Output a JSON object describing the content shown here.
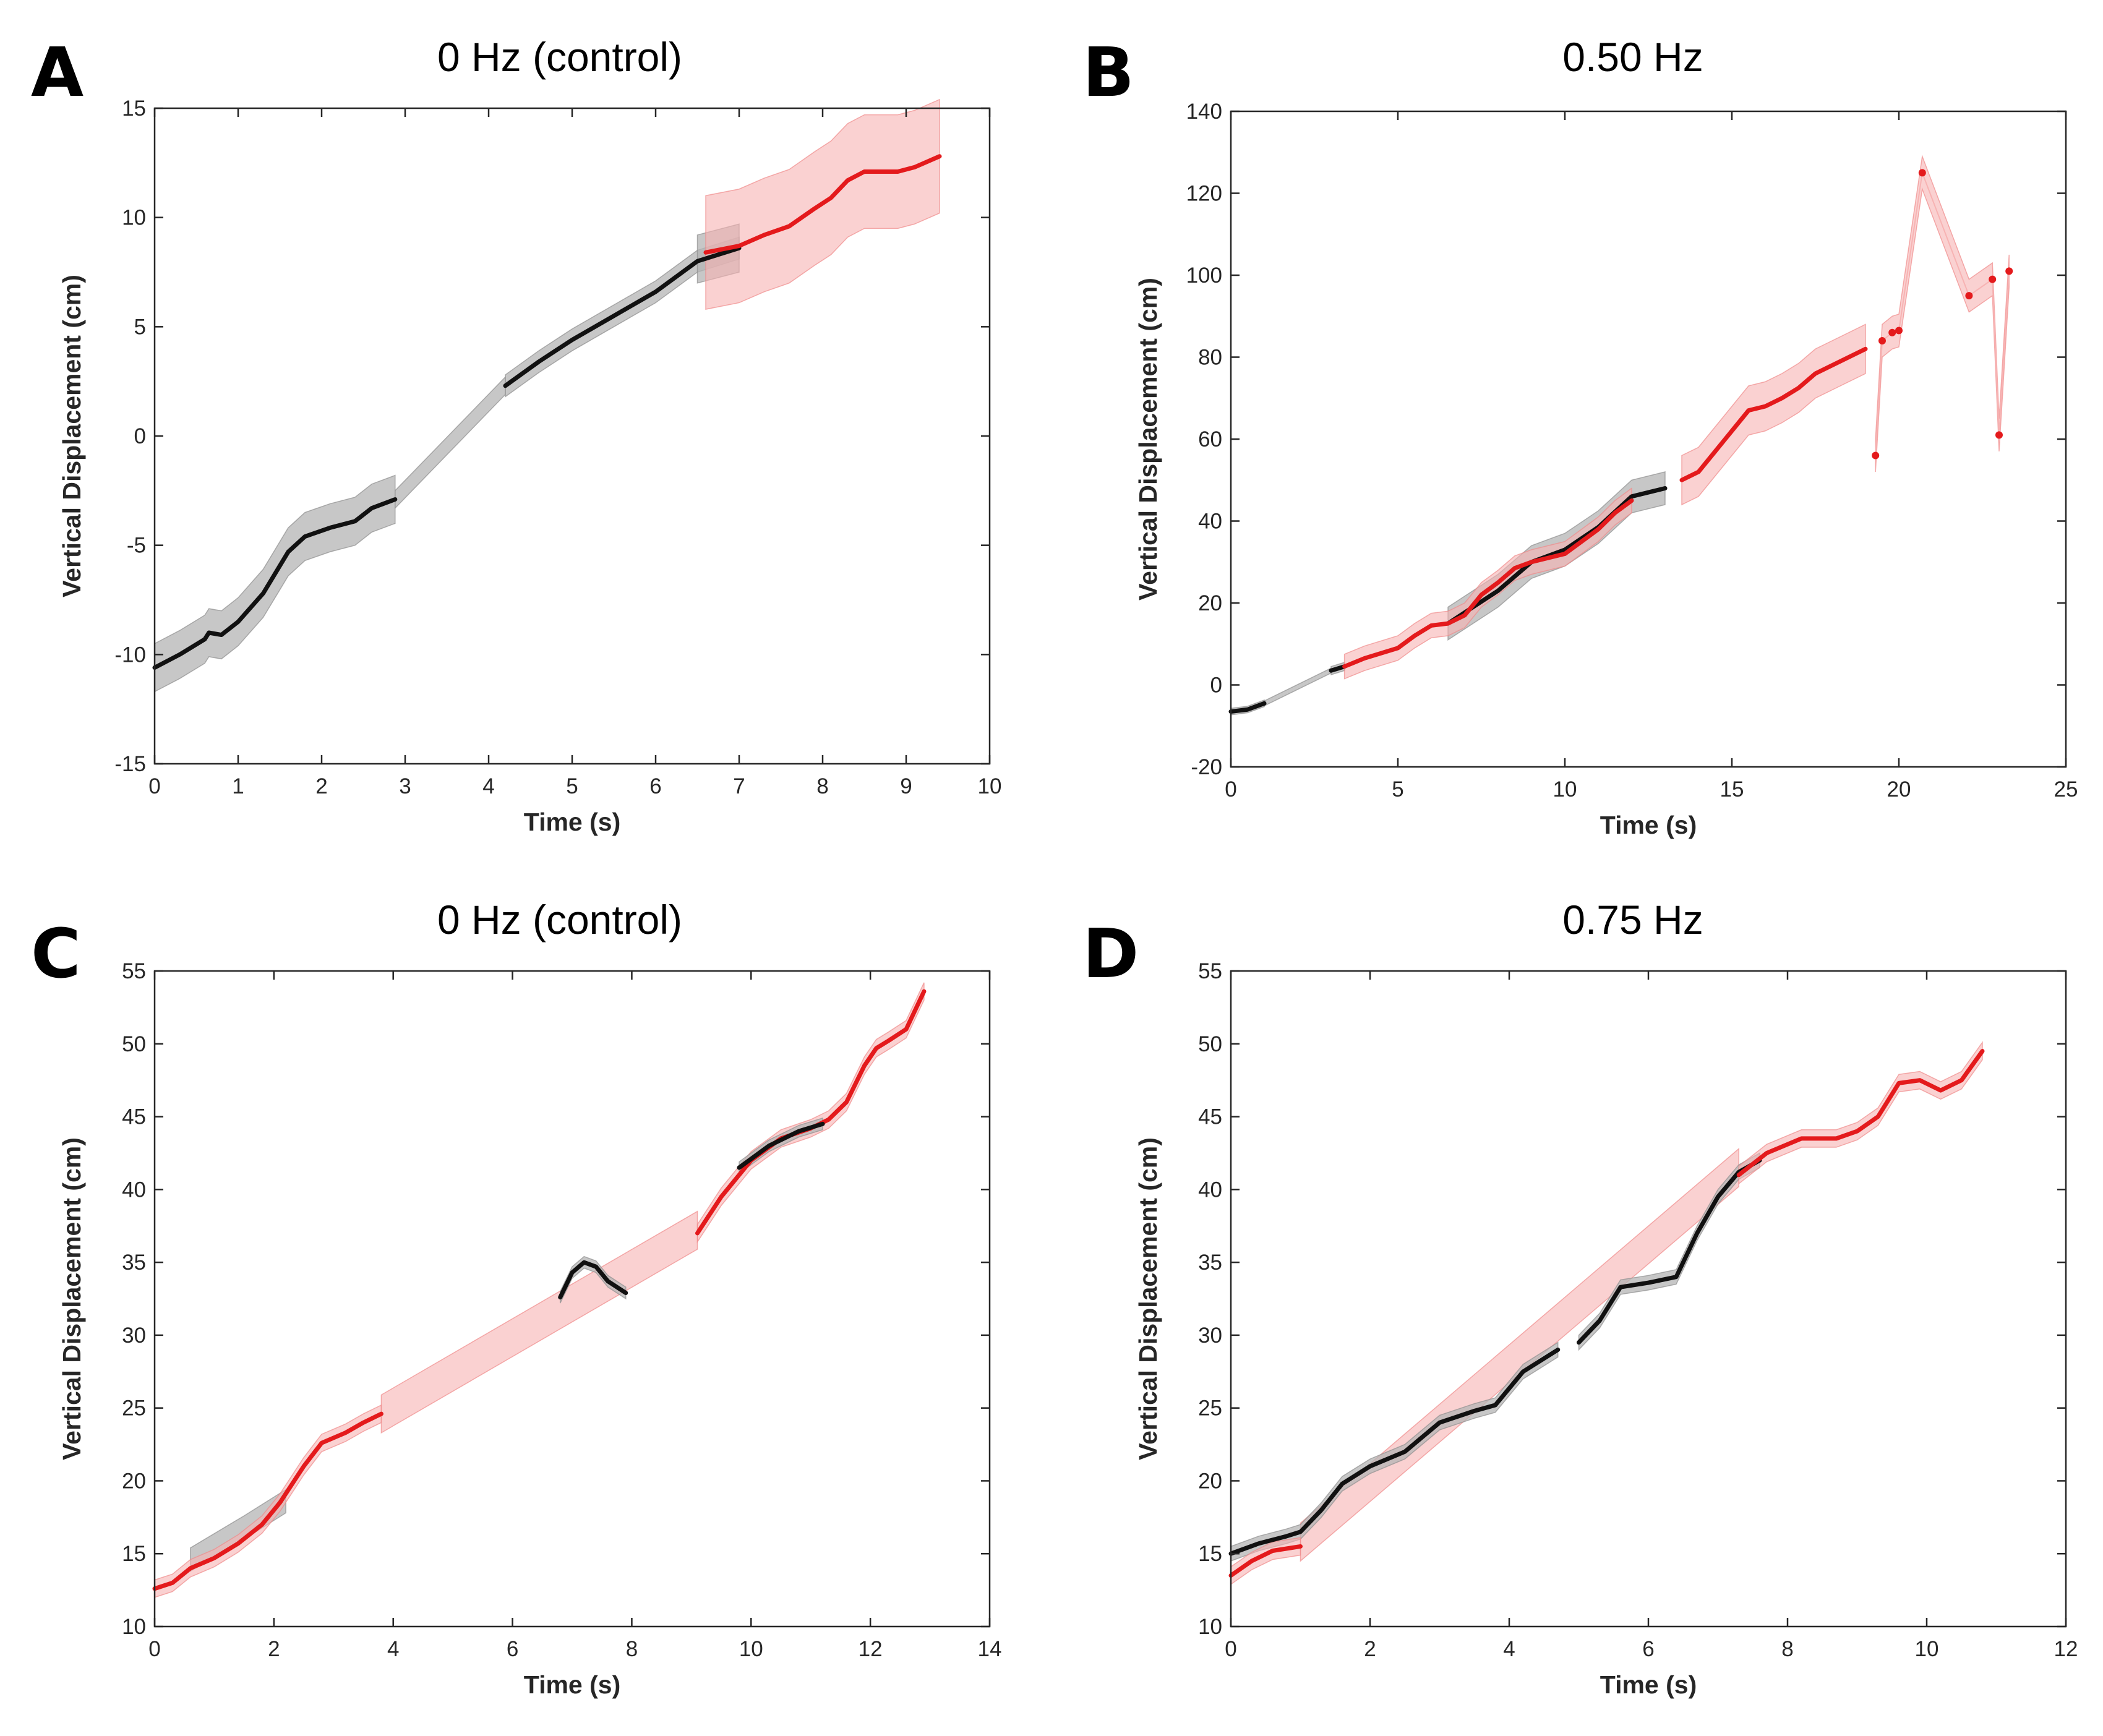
{
  "chart_data": [
    {
      "panel": "A",
      "type": "line",
      "title": "0 Hz (control)",
      "xlabel": "Time (s)",
      "ylabel": "Vertical Displacement (cm)",
      "xlim": [
        0,
        10
      ],
      "ylim": [
        -15,
        15
      ],
      "xticks": [
        "0",
        "1",
        "2",
        "3",
        "4",
        "5",
        "6",
        "7",
        "8",
        "9",
        "10"
      ],
      "yticks": [
        "-15",
        "-10",
        "-5",
        "0",
        "5",
        "10",
        "15"
      ],
      "colors": {
        "black": "#111111",
        "red": "#e41a1c",
        "black_band": "#b4b4b4",
        "red_band": "#f7b3b3"
      },
      "series": [
        {
          "name": "black_1",
          "color": "black",
          "band": 1.1,
          "x": [
            0,
            0.3,
            0.6,
            0.65,
            0.8,
            1.0,
            1.3,
            1.6,
            1.8,
            2.1,
            2.4,
            2.6,
            2.88
          ],
          "y": [
            -10.6,
            -10.0,
            -9.3,
            -9.0,
            -9.1,
            -8.5,
            -7.2,
            -5.3,
            -4.6,
            -4.2,
            -3.9,
            -3.3,
            -2.9
          ]
        },
        {
          "name": "gap_1",
          "color": "black",
          "band": 0.4,
          "band_only": true,
          "x": [
            2.88,
            4.2
          ],
          "y": [
            -2.9,
            2.3
          ]
        },
        {
          "name": "black_2",
          "color": "black",
          "band": 0.5,
          "x": [
            4.2,
            4.6,
            5.0,
            5.5,
            6.0,
            6.5,
            7.0
          ],
          "y": [
            2.3,
            3.4,
            4.4,
            5.5,
            6.6,
            8.0,
            8.6
          ]
        },
        {
          "name": "black_band_end",
          "color": "black",
          "band": 1.1,
          "band_only": true,
          "x": [
            6.5,
            7.0
          ],
          "y": [
            8.1,
            8.6
          ]
        },
        {
          "name": "red_1",
          "color": "red",
          "band_lower": 2.6,
          "band_upper": 2.6,
          "x": [
            6.6,
            7.0,
            7.3,
            7.6,
            7.9,
            8.1,
            8.3,
            8.5,
            8.9,
            9.1,
            9.4
          ],
          "y": [
            8.4,
            8.7,
            9.2,
            9.6,
            10.4,
            10.9,
            11.7,
            12.1,
            12.1,
            12.3,
            12.8
          ]
        }
      ]
    },
    {
      "panel": "B",
      "type": "line",
      "title": "0.50 Hz",
      "xlabel": "Time (s)",
      "ylabel": "Vertical Displacement (cm)",
      "xlim": [
        0,
        25
      ],
      "ylim": [
        -20,
        140
      ],
      "xticks": [
        "0",
        "5",
        "10",
        "15",
        "20",
        "25"
      ],
      "yticks": [
        "-20",
        "0",
        "20",
        "40",
        "60",
        "80",
        "100",
        "120",
        "140"
      ],
      "colors": {
        "black": "#111111",
        "red": "#e41a1c",
        "black_band": "#b4b4b4",
        "red_band": "#f7b3b3"
      },
      "series": [
        {
          "name": "black_1",
          "color": "black",
          "band": 0.8,
          "x": [
            0,
            0.5,
            1.0
          ],
          "y": [
            -6.5,
            -6.0,
            -4.5
          ]
        },
        {
          "name": "gap_1",
          "color": "black",
          "band": 0.6,
          "band_only": true,
          "x": [
            1.0,
            3.0
          ],
          "y": [
            -4.5,
            3.5
          ]
        },
        {
          "name": "black_2",
          "color": "black",
          "band": 1.0,
          "x": [
            3.0,
            3.4
          ],
          "y": [
            3.5,
            4.5
          ]
        },
        {
          "name": "black_3",
          "color": "black",
          "band": 4.0,
          "x": [
            6.5,
            8.0,
            9.0,
            10.0,
            11.0,
            12.0,
            13.0
          ],
          "y": [
            15.0,
            23.0,
            30.0,
            33.0,
            38.5,
            46.0,
            48.0
          ]
        },
        {
          "name": "red_1",
          "color": "red",
          "band": 3.0,
          "x": [
            3.4,
            4.0,
            5.0,
            5.5,
            6.0,
            6.5,
            7.0,
            7.5,
            8.0,
            8.5,
            9.0,
            9.5,
            10.0,
            10.5,
            11.0,
            11.5,
            12.0
          ],
          "y": [
            4.5,
            6.5,
            9.0,
            12.0,
            14.5,
            15.0,
            17.0,
            22.0,
            25.0,
            28.5,
            30.0,
            31.0,
            32.0,
            35.0,
            38.0,
            42.0,
            45.0
          ]
        },
        {
          "name": "red_2",
          "color": "red",
          "band": 6.0,
          "x": [
            13.5,
            14.0,
            14.5,
            15.0,
            15.5,
            16.0,
            16.5,
            17.0,
            17.5,
            18.0,
            18.5,
            19.0
          ],
          "y": [
            50.0,
            52.0,
            57.0,
            62.0,
            67.0,
            68.0,
            70.0,
            72.5,
            76.0,
            78.0,
            80.0,
            82.0
          ]
        },
        {
          "name": "red_3",
          "color": "red",
          "band_lower": 4.0,
          "band_upper": 4.0,
          "markers": true,
          "x": [
            19.3,
            19.5,
            19.8,
            20.0,
            20.7,
            22.1,
            22.8,
            23.0,
            23.3
          ],
          "y": [
            56.0,
            84.0,
            86.0,
            86.5,
            125.0,
            95.0,
            99.0,
            61.0,
            101.0
          ]
        }
      ]
    },
    {
      "panel": "C",
      "type": "line",
      "title": "0 Hz (control)",
      "xlabel": "Time (s)",
      "ylabel": "Vertical Displacement (cm)",
      "xlim": [
        0,
        14
      ],
      "ylim": [
        10,
        55
      ],
      "xticks": [
        "0",
        "2",
        "4",
        "6",
        "8",
        "10",
        "12",
        "14"
      ],
      "yticks": [
        "10",
        "15",
        "20",
        "25",
        "30",
        "35",
        "40",
        "45",
        "50",
        "55"
      ],
      "colors": {
        "black": "#111111",
        "red": "#e41a1c",
        "black_band": "#b4b4b4",
        "red_band": "#f7b3b3"
      },
      "series": [
        {
          "name": "black_band_early",
          "color": "black",
          "band": 0.8,
          "band_only": true,
          "x": [
            0.6,
            1.5,
            2.2
          ],
          "y": [
            14.6,
            16.8,
            18.6
          ]
        },
        {
          "name": "red_1",
          "color": "red",
          "band": 0.6,
          "x": [
            0,
            0.3,
            0.6,
            1.0,
            1.4,
            1.8,
            2.1,
            2.5,
            2.8,
            3.2,
            3.5,
            3.8
          ],
          "y": [
            12.6,
            13.0,
            14.0,
            14.7,
            15.7,
            17.0,
            18.5,
            21.0,
            22.6,
            23.3,
            24.0,
            24.6
          ]
        },
        {
          "name": "red_gap",
          "color": "red",
          "band": 1.3,
          "band_only": true,
          "x": [
            3.8,
            9.1
          ],
          "y": [
            24.6,
            37.2
          ]
        },
        {
          "name": "black_1",
          "color": "black",
          "band": 0.4,
          "x": [
            6.8,
            7.0,
            7.2,
            7.4,
            7.6,
            7.9
          ],
          "y": [
            32.6,
            34.3,
            35.0,
            34.7,
            33.7,
            32.9
          ]
        },
        {
          "name": "red_2",
          "color": "red",
          "band": 0.6,
          "x": [
            9.1,
            9.5,
            10.0,
            10.5,
            11.0,
            11.3,
            11.6,
            11.9,
            12.1,
            12.3,
            12.6,
            12.9
          ],
          "y": [
            37.0,
            39.5,
            42.0,
            43.5,
            44.2,
            44.8,
            46.0,
            48.5,
            49.7,
            50.2,
            51.0,
            53.6
          ]
        },
        {
          "name": "black_2",
          "color": "black",
          "band": 0.4,
          "x": [
            9.8,
            10.3,
            10.8,
            11.2
          ],
          "y": [
            41.5,
            43.0,
            44.0,
            44.5
          ]
        }
      ]
    },
    {
      "panel": "D",
      "type": "line",
      "title": "0.75 Hz",
      "xlabel": "Time (s)",
      "ylabel": "Vertical Displacement (cm)",
      "xlim": [
        0,
        12
      ],
      "ylim": [
        10,
        55
      ],
      "xticks": [
        "0",
        "2",
        "4",
        "6",
        "8",
        "10",
        "12"
      ],
      "yticks": [
        "10",
        "15",
        "20",
        "25",
        "30",
        "35",
        "40",
        "45",
        "50",
        "55"
      ],
      "colors": {
        "black": "#111111",
        "red": "#e41a1c",
        "black_band": "#b4b4b4",
        "red_band": "#f7b3b3"
      },
      "series": [
        {
          "name": "red_band_diag",
          "color": "red",
          "band": 1.3,
          "band_only": true,
          "x": [
            1.0,
            7.3
          ],
          "y": [
            15.8,
            41.5
          ]
        },
        {
          "name": "black_1",
          "color": "black",
          "band": 0.5,
          "x": [
            0,
            0.4,
            0.8,
            1.0,
            1.3,
            1.6,
            2.0,
            2.5,
            3.0,
            3.5,
            3.8,
            4.2,
            4.7
          ],
          "y": [
            15.0,
            15.7,
            16.2,
            16.5,
            18.0,
            19.8,
            21.0,
            22.0,
            24.0,
            24.8,
            25.2,
            27.5,
            29.0
          ]
        },
        {
          "name": "black_2",
          "color": "black",
          "band": 0.5,
          "x": [
            5.0,
            5.3,
            5.6,
            6.0,
            6.4,
            6.7,
            7.0,
            7.3,
            7.6
          ],
          "y": [
            29.5,
            31.0,
            33.3,
            33.6,
            34.0,
            37.0,
            39.5,
            41.2,
            42.0
          ]
        },
        {
          "name": "red_1",
          "color": "red",
          "band": 0.6,
          "x": [
            0,
            0.3,
            0.6,
            1.0
          ],
          "y": [
            13.5,
            14.5,
            15.2,
            15.5
          ]
        },
        {
          "name": "red_2",
          "color": "red",
          "band": 0.6,
          "x": [
            7.3,
            7.7,
            8.2,
            8.7,
            9.0,
            9.3,
            9.6,
            9.9,
            10.2,
            10.5,
            10.8
          ],
          "y": [
            41.0,
            42.5,
            43.5,
            43.5,
            44.0,
            45.0,
            47.3,
            47.5,
            46.8,
            47.5,
            49.5
          ]
        }
      ]
    }
  ]
}
